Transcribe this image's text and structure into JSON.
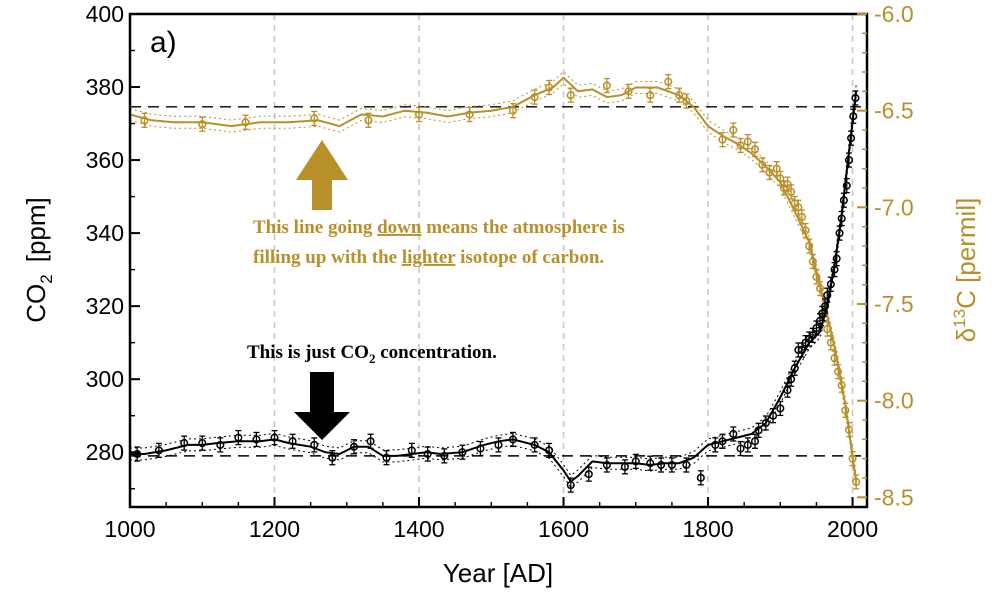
{
  "chart_data": {
    "type": "line",
    "panel_label": "a)",
    "xlabel": "Year [AD]",
    "xlim": [
      1000,
      2020
    ],
    "xticks": [
      "1000",
      "1200",
      "1400",
      "1600",
      "1800",
      "2000"
    ],
    "colors": {
      "co2": "#000000",
      "d13c": "#b8902a",
      "grid": "#c8c8c8"
    },
    "left_axis": {
      "label_main": "CO",
      "label_sub": "2",
      "label_unit": "[ppm]",
      "ylim": [
        265,
        400
      ],
      "yticks": [
        "280",
        "300",
        "320",
        "340",
        "360",
        "380",
        "400"
      ]
    },
    "right_axis": {
      "label_main": "δ",
      "label_sup": "13",
      "label_unit": "C  [permil]",
      "ylim": [
        -8.55,
        -6.0
      ],
      "yticks": [
        "-6.0",
        "-6.5",
        "-7.0",
        "-7.5",
        "-8.0",
        "-8.5"
      ]
    },
    "vertical_gridlines_x": [
      1200,
      1400,
      1600,
      1800,
      2000
    ],
    "reference_lines": {
      "co2": 279,
      "d13c": -6.48
    },
    "series": [
      {
        "key": "co2",
        "axis": "left",
        "smooth_x": [
          1000,
          1020,
          1050,
          1080,
          1100,
          1120,
          1150,
          1180,
          1200,
          1220,
          1250,
          1270,
          1290,
          1310,
          1330,
          1350,
          1370,
          1390,
          1410,
          1430,
          1460,
          1490,
          1510,
          1530,
          1560,
          1580,
          1600,
          1610,
          1620,
          1640,
          1660,
          1680,
          1700,
          1720,
          1740,
          1760,
          1780,
          1800,
          1820,
          1840,
          1860,
          1880,
          1900,
          1920,
          1940,
          1955,
          1965,
          1975,
          1985,
          1995,
          2005
        ],
        "smooth_y": [
          279.5,
          279.5,
          280.5,
          282,
          282,
          282.5,
          283,
          283,
          283.5,
          282.5,
          281.5,
          280,
          279.5,
          281.5,
          281.5,
          279,
          279,
          279.5,
          280,
          279.5,
          280,
          282,
          283,
          283.5,
          282,
          280,
          275,
          272,
          273.5,
          277.5,
          277,
          277,
          277,
          276.5,
          277,
          277,
          278.5,
          282,
          283,
          284,
          285,
          288,
          295,
          303,
          310,
          313,
          320,
          331,
          345,
          362,
          379
        ],
        "points_x": [
          1010,
          1040,
          1075,
          1100,
          1125,
          1150,
          1175,
          1200,
          1225,
          1255,
          1280,
          1310,
          1333,
          1355,
          1390,
          1412,
          1435,
          1460,
          1485,
          1510,
          1530,
          1560,
          1580,
          1610,
          1635,
          1660,
          1685,
          1700,
          1720,
          1735,
          1750,
          1770,
          1790,
          1810,
          1820,
          1835,
          1845,
          1855,
          1865,
          1870,
          1880,
          1890,
          1900,
          1910,
          1915,
          1920,
          1925,
          1930,
          1935,
          1940,
          1945,
          1950,
          1955,
          1958,
          1962,
          1965,
          1970,
          1975,
          1978,
          1982,
          1985,
          1988,
          1992,
          1995,
          1998,
          2001,
          2004
        ],
        "points_y": [
          279.5,
          280.5,
          282.5,
          282.5,
          282,
          284,
          283.5,
          284,
          283,
          282,
          278.5,
          281.5,
          283,
          278.5,
          280.5,
          279.5,
          279,
          280,
          281,
          282,
          283.5,
          282,
          280.5,
          271,
          274,
          276.5,
          276,
          277.5,
          277,
          276.5,
          276.5,
          276.5,
          273,
          282,
          283,
          285,
          281,
          282,
          283,
          286,
          288,
          290,
          292,
          297,
          300,
          303,
          308,
          308,
          310,
          311,
          312,
          314,
          316,
          318,
          320,
          323,
          326,
          330,
          333,
          340,
          344,
          349,
          353,
          360,
          366,
          372,
          377
        ]
      },
      {
        "key": "d13c",
        "axis": "right",
        "smooth_x": [
          1000,
          1030,
          1060,
          1100,
          1140,
          1180,
          1220,
          1260,
          1290,
          1320,
          1350,
          1380,
          1410,
          1440,
          1470,
          1500,
          1530,
          1560,
          1585,
          1600,
          1620,
          1640,
          1660,
          1680,
          1700,
          1730,
          1760,
          1780,
          1800,
          1820,
          1840,
          1860,
          1880,
          1900,
          1920,
          1940,
          1960,
          1975,
          1990,
          2005
        ],
        "smooth_y": [
          -6.52,
          -6.55,
          -6.56,
          -6.56,
          -6.58,
          -6.56,
          -6.56,
          -6.55,
          -6.58,
          -6.52,
          -6.53,
          -6.5,
          -6.51,
          -6.53,
          -6.51,
          -6.5,
          -6.48,
          -6.42,
          -6.38,
          -6.33,
          -6.4,
          -6.39,
          -6.43,
          -6.42,
          -6.38,
          -6.38,
          -6.42,
          -6.48,
          -6.58,
          -6.63,
          -6.67,
          -6.72,
          -6.79,
          -6.87,
          -7.02,
          -7.18,
          -7.48,
          -7.72,
          -8.02,
          -8.42
        ],
        "points_x": [
          1020,
          1100,
          1160,
          1255,
          1330,
          1400,
          1470,
          1530,
          1560,
          1580,
          1610,
          1660,
          1690,
          1720,
          1745,
          1760,
          1770,
          1820,
          1835,
          1845,
          1855,
          1865,
          1875,
          1885,
          1895,
          1900,
          1905,
          1910,
          1915,
          1920,
          1925,
          1930,
          1935,
          1940,
          1945,
          1950,
          1955,
          1960,
          1965,
          1970,
          1975,
          1980,
          1985,
          1990,
          1995,
          2000,
          2005
        ],
        "points_y": [
          -6.55,
          -6.57,
          -6.56,
          -6.54,
          -6.55,
          -6.52,
          -6.52,
          -6.5,
          -6.43,
          -6.38,
          -6.42,
          -6.37,
          -6.4,
          -6.42,
          -6.35,
          -6.42,
          -6.45,
          -6.65,
          -6.6,
          -6.68,
          -6.66,
          -6.7,
          -6.78,
          -6.82,
          -6.8,
          -6.85,
          -6.9,
          -6.88,
          -6.92,
          -6.98,
          -7.0,
          -7.05,
          -7.12,
          -7.2,
          -7.28,
          -7.36,
          -7.42,
          -7.55,
          -7.63,
          -7.7,
          -7.78,
          -7.85,
          -7.92,
          -8.05,
          -8.15,
          -8.3,
          -8.42
        ]
      }
    ],
    "annotations": {
      "d13c_line1": {
        "pre": "This line going ",
        "u": "down",
        "post": " means the atmosphere is"
      },
      "d13c_line2": {
        "pre": "filling up with the ",
        "u": "lighter",
        "post": " isotope of carbon."
      },
      "co2_line": {
        "pre": "This is just CO",
        "sub": "2",
        "post": " concentration."
      }
    }
  }
}
